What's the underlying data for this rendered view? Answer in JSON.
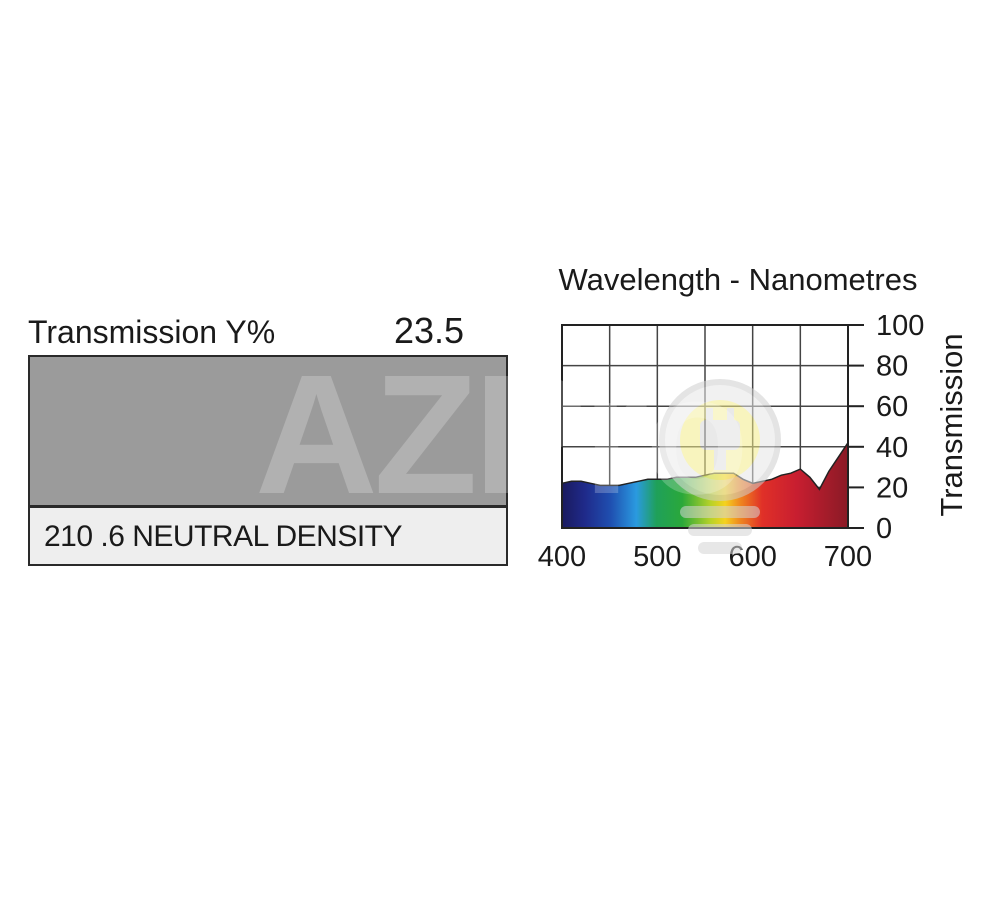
{
  "swatch": {
    "transmission_label": "Transmission Y%",
    "transmission_value": "23.5",
    "filter_name": "210 .6 NEUTRAL DENSITY",
    "swatch_color": "#9b9b9b"
  },
  "watermark": {
    "text": "AZPro"
  },
  "chart_data": {
    "type": "area",
    "title": "Wavelength - Nanometres",
    "xlabel": "",
    "ylabel": "Transmission",
    "xlim": [
      400,
      700
    ],
    "ylim": [
      0,
      100
    ],
    "x_ticks": [
      400,
      500,
      600,
      700
    ],
    "y_ticks": [
      0,
      20,
      40,
      60,
      80,
      100
    ],
    "grid": true,
    "fill": "visible spectrum colors",
    "series": [
      {
        "x": [
          400,
          410,
          420,
          430,
          440,
          450,
          460,
          470,
          480,
          490,
          500,
          510,
          520,
          530,
          540,
          550,
          560,
          570,
          580,
          590,
          600,
          610,
          620,
          630,
          640,
          650,
          660,
          670,
          680,
          690,
          700
        ],
        "values": [
          22,
          23,
          23,
          22,
          21,
          21,
          21,
          22,
          23,
          24,
          24,
          24,
          25,
          25,
          25,
          26,
          27,
          27,
          27,
          24,
          22,
          23,
          24,
          26,
          27,
          29,
          25,
          19,
          28,
          35,
          42
        ]
      }
    ]
  }
}
